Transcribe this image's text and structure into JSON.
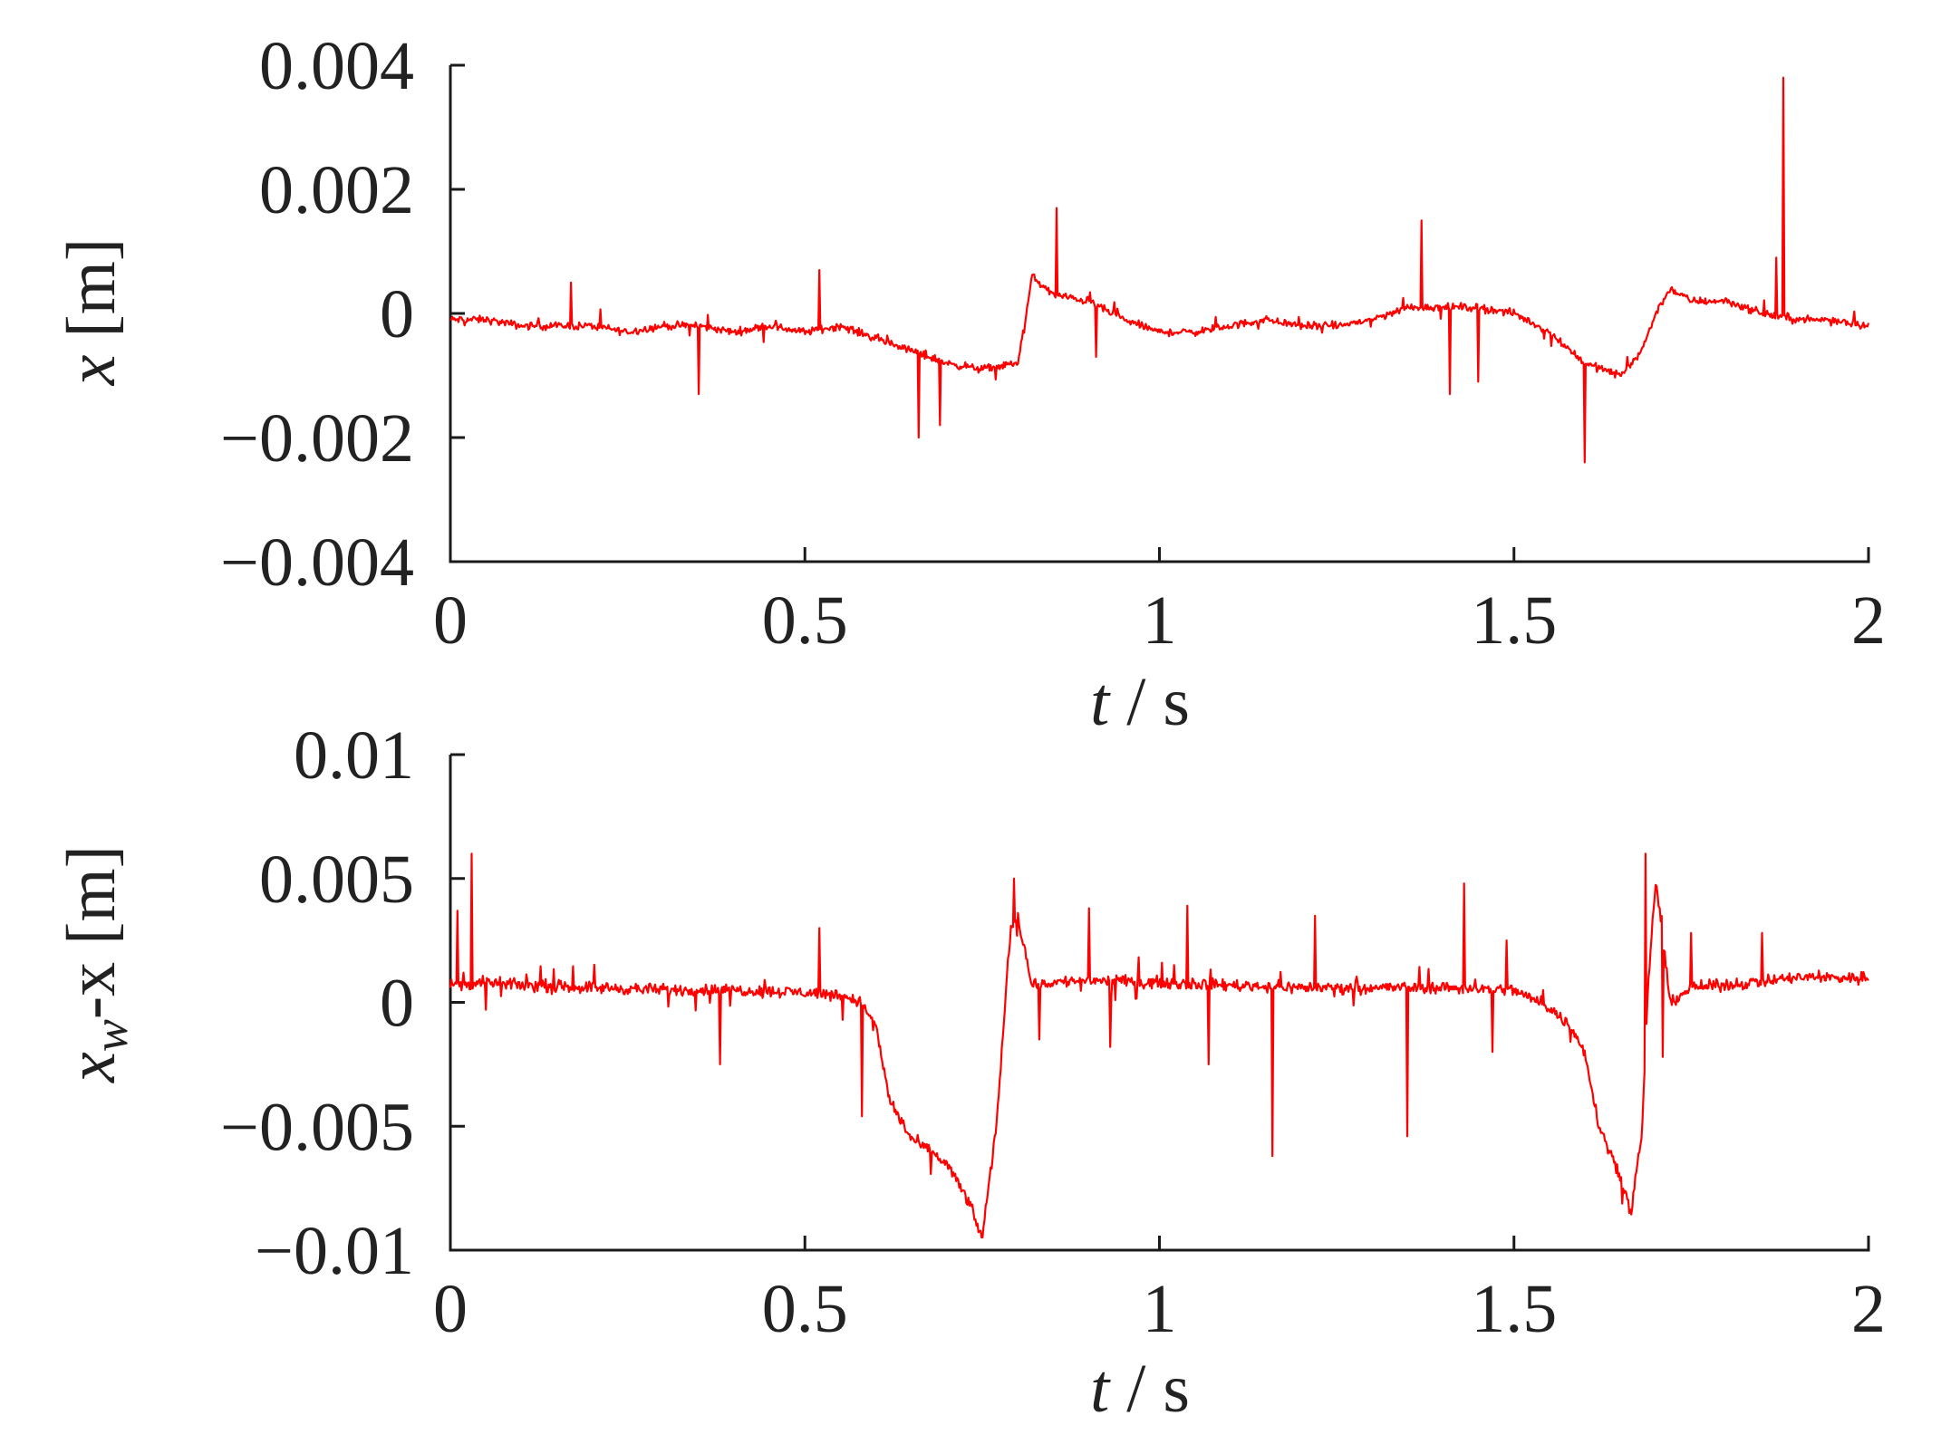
{
  "chart_data": [
    {
      "type": "line",
      "xlabel": "t / s",
      "xlabel_parts": {
        "var": "t",
        "unit": " / s"
      },
      "ylabel": "x [m]",
      "ylabel_parts": {
        "var": "x",
        "sub": "",
        "rest": " [m]"
      },
      "xlim": [
        0,
        2
      ],
      "ylim": [
        -0.004,
        0.004
      ],
      "xticks": [
        0,
        0.5,
        1,
        1.5,
        2
      ],
      "xtick_labels": [
        "0",
        "0.5",
        "1",
        "1.5",
        "2"
      ],
      "yticks": [
        0.004,
        0.002,
        0,
        -0.002,
        -0.004
      ],
      "ytick_labels": [
        "0.004",
        "0.002",
        "0",
        "−0.002",
        "−0.004"
      ],
      "grid": false,
      "series_color": "#ff0000",
      "series": [
        {
          "x": [
            0,
            0.05,
            0.1,
            0.15,
            0.2,
            0.25,
            0.3,
            0.35,
            0.4,
            0.45,
            0.5,
            0.55,
            0.6,
            0.65,
            0.7,
            0.75,
            0.8,
            0.81,
            0.82,
            0.85,
            0.9,
            0.95,
            1.0,
            1.05,
            1.1,
            1.15,
            1.2,
            1.25,
            1.3,
            1.35,
            1.4,
            1.45,
            1.5,
            1.55,
            1.6,
            1.65,
            1.68,
            1.7,
            1.72,
            1.75,
            1.8,
            1.85,
            1.9,
            1.95,
            2.0
          ],
          "y": [
            -0.0001,
            -0.0001,
            -0.0002,
            -0.0002,
            -0.0002,
            -0.0003,
            -0.0002,
            -0.0002,
            -0.0003,
            -0.0002,
            -0.0003,
            -0.0002,
            -0.0004,
            -0.0006,
            -0.0008,
            -0.0009,
            -0.0008,
            -0.0002,
            0.0006,
            0.0003,
            0.0002,
            -0.0001,
            -0.0003,
            -0.0003,
            -0.0002,
            -0.0001,
            -0.0002,
            -0.0002,
            -0.0001,
            0.0001,
            0.0001,
            0.0001,
            0.0,
            -0.0003,
            -0.0008,
            -0.001,
            -0.0006,
            0.0,
            0.0004,
            0.0002,
            0.0002,
            0.0,
            -0.0001,
            -0.0001,
            -0.0002
          ],
          "spikes": [
            [
              0.17,
              0.0005
            ],
            [
              0.35,
              -0.0013
            ],
            [
              0.52,
              0.0007
            ],
            [
              0.66,
              -0.002
            ],
            [
              0.69,
              -0.0018
            ],
            [
              0.855,
              0.0017
            ],
            [
              0.91,
              -0.0007
            ],
            [
              1.37,
              0.0015
            ],
            [
              1.41,
              -0.0013
            ],
            [
              1.45,
              -0.0011
            ],
            [
              1.6,
              -0.0024
            ],
            [
              1.87,
              0.0009
            ],
            [
              1.88,
              0.0038
            ]
          ],
          "noise": 9e-05
        }
      ]
    },
    {
      "type": "line",
      "xlabel": "t / s",
      "xlabel_parts": {
        "var": "t",
        "unit": " / s"
      },
      "ylabel": "xw-x [m]",
      "ylabel_parts": {
        "var": "x",
        "sub": "w",
        "rest": "-x [m]"
      },
      "xlim": [
        0,
        2
      ],
      "ylim": [
        -0.01,
        0.01
      ],
      "xticks": [
        0,
        0.5,
        1,
        1.5,
        2
      ],
      "xtick_labels": [
        "0",
        "0.5",
        "1",
        "1.5",
        "2"
      ],
      "yticks": [
        0.01,
        0.005,
        0,
        -0.005,
        -0.01
      ],
      "ytick_labels": [
        "0.01",
        "0.005",
        "0",
        "−0.005",
        "−0.01"
      ],
      "grid": false,
      "series_color": "#ff0000",
      "series": [
        {
          "x": [
            0,
            0.05,
            0.1,
            0.2,
            0.3,
            0.4,
            0.5,
            0.55,
            0.58,
            0.6,
            0.62,
            0.65,
            0.7,
            0.73,
            0.75,
            0.77,
            0.79,
            0.8,
            0.82,
            0.85,
            0.9,
            1.0,
            1.1,
            1.2,
            1.3,
            1.4,
            1.5,
            1.55,
            1.58,
            1.6,
            1.62,
            1.65,
            1.665,
            1.68,
            1.69,
            1.7,
            1.72,
            1.75,
            1.8,
            1.9,
            2.0
          ],
          "y": [
            0.0007,
            0.0008,
            0.0007,
            0.0006,
            0.0005,
            0.0005,
            0.0004,
            0.0003,
            0.0,
            -0.001,
            -0.004,
            -0.0055,
            -0.0065,
            -0.008,
            -0.0095,
            -0.005,
            0.003,
            0.0035,
            0.0007,
            0.0008,
            0.0009,
            0.0008,
            0.0007,
            0.0006,
            0.0006,
            0.0006,
            0.0005,
            -0.0002,
            -0.001,
            -0.002,
            -0.005,
            -0.007,
            -0.0085,
            -0.0055,
            0.001,
            0.005,
            0.0,
            0.0006,
            0.0007,
            0.001,
            0.001
          ],
          "spikes": [
            [
              0.01,
              0.0037
            ],
            [
              0.03,
              0.006
            ],
            [
              0.05,
              -0.0003
            ],
            [
              0.38,
              -0.0025
            ],
            [
              0.52,
              0.003
            ],
            [
              0.58,
              -0.0046
            ],
            [
              0.795,
              0.005
            ],
            [
              0.83,
              -0.0015
            ],
            [
              0.9,
              0.0038
            ],
            [
              0.93,
              -0.0018
            ],
            [
              1.04,
              0.0039
            ],
            [
              1.07,
              -0.0025
            ],
            [
              1.16,
              -0.0062
            ],
            [
              1.22,
              0.0035
            ],
            [
              1.35,
              -0.0054
            ],
            [
              1.43,
              0.0048
            ],
            [
              1.47,
              -0.002
            ],
            [
              1.49,
              0.0025
            ],
            [
              1.685,
              0.006
            ],
            [
              1.71,
              -0.0022
            ],
            [
              1.75,
              0.0028
            ],
            [
              1.85,
              0.0028
            ]
          ],
          "noise": 0.00035
        }
      ]
    }
  ]
}
